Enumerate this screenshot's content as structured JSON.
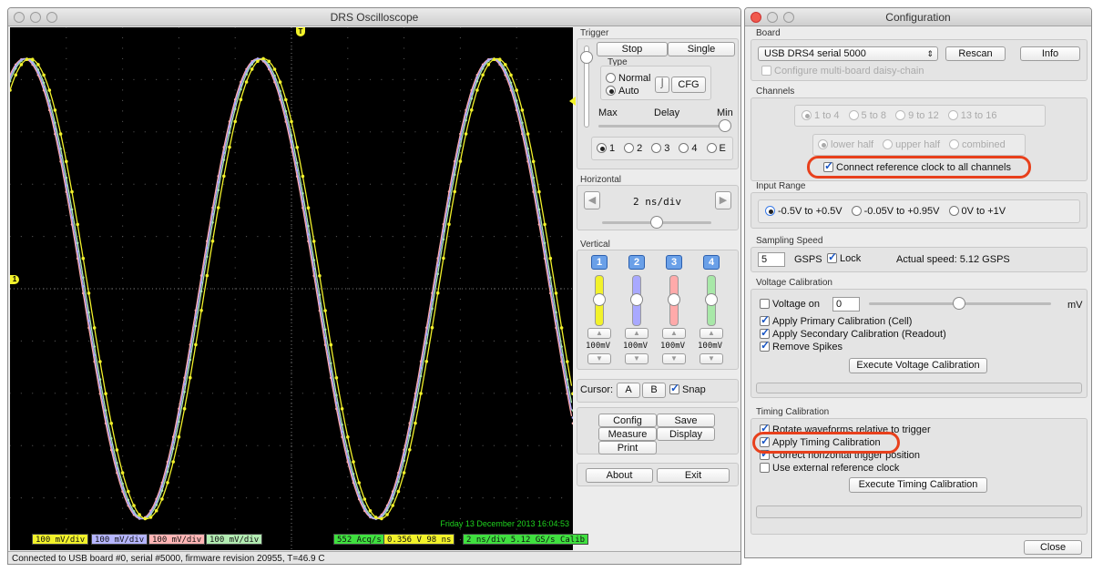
{
  "osc": {
    "title": "DRS Oscilloscope",
    "status_bar": "Connected to USB board #0, serial #5000, firmware revision 20955, T=46.9 C",
    "date_stamp": "Friday 13 December 2013 16:04:53",
    "trigger_marker": "T",
    "ch_marker": "1",
    "badges": {
      "ch1": "100 mV/div",
      "ch2": "100 mV/div",
      "ch3": "100 mV/div",
      "ch4": "100 mV/div",
      "acq": "552 Acq/s",
      "trig": "0.356 V 98 ns",
      "time": "2 ns/div  5.12 GS/s Calib"
    },
    "trigger": {
      "caption": "Trigger",
      "stop": "Stop",
      "single": "Single",
      "type": "Type",
      "normal": "Normal",
      "auto": "Auto",
      "cfg": "CFG",
      "max": "Max",
      "delay": "Delay",
      "min": "Min",
      "sources": [
        "1",
        "2",
        "3",
        "4",
        "E"
      ]
    },
    "horizontal": {
      "caption": "Horizontal",
      "value": "2 ns/div"
    },
    "vertical": {
      "caption": "Vertical",
      "channels": [
        {
          "n": "1",
          "scale": "100mV",
          "color": "#f2f22a"
        },
        {
          "n": "2",
          "scale": "100mV",
          "color": "#a9a9ff"
        },
        {
          "n": "3",
          "scale": "100mV",
          "color": "#ffaaaa"
        },
        {
          "n": "4",
          "scale": "100mV",
          "color": "#a8e8a8"
        }
      ]
    },
    "cursor": {
      "label": "Cursor:",
      "a": "A",
      "b": "B",
      "snap": "Snap"
    },
    "buttons": {
      "config": "Config",
      "save": "Save",
      "measure": "Measure",
      "display": "Display",
      "print": "Print",
      "about": "About",
      "exit": "Exit"
    }
  },
  "conf": {
    "title": "Configuration",
    "board": {
      "caption": "Board",
      "select": "USB DRS4 serial 5000",
      "rescan": "Rescan",
      "info": "Info",
      "daisy": "Configure multi-board daisy-chain"
    },
    "channels": {
      "caption": "Channels",
      "ranges": [
        "1 to 4",
        "5 to 8",
        "9 to 12",
        "13 to 16"
      ],
      "halves": [
        "lower half",
        "upper half",
        "combined"
      ],
      "refclk": "Connect reference clock to all channels"
    },
    "input": {
      "caption": "Input Range",
      "opts": [
        "-0.5V to +0.5V",
        "-0.05V to +0.95V",
        "0V to +1V"
      ]
    },
    "sampling": {
      "caption": "Sampling Speed",
      "value": "5",
      "unit": "GSPS",
      "lock": "Lock",
      "actual": "Actual speed:  5.12 GSPS"
    },
    "voltage": {
      "caption": "Voltage Calibration",
      "voltage_on": "Voltage on",
      "value": "0",
      "unit": "mV",
      "primary": "Apply Primary Calibration (Cell)",
      "secondary": "Apply Secondary Calibration (Readout)",
      "spikes": "Remove Spikes",
      "execute": "Execute Voltage Calibration"
    },
    "timing": {
      "caption": "Timing Calibration",
      "rotate": "Rotate waveforms relative to trigger",
      "apply": "Apply Timing Calibration",
      "correct": "Correct horizontal trigger position",
      "external": "Use external reference clock",
      "execute": "Execute Timing Calibration"
    },
    "close": "Close"
  },
  "chart_data": {
    "type": "line",
    "title": "",
    "xlabel": "",
    "ylabel": "",
    "grid": true,
    "x_divisions": 10,
    "y_divisions": 10,
    "xlim_ns": [
      0,
      20
    ],
    "ylim_mV": [
      -500,
      500
    ],
    "series": [
      {
        "channel": "1",
        "color": "#f2f22a",
        "amplitude_mV": 440,
        "period_ns": 8.3,
        "phase_offset_ns": 0.16
      },
      {
        "channel": "2",
        "color": "#a9a9ff",
        "amplitude_mV": 440,
        "period_ns": 8.3,
        "phase_offset_ns": 0
      },
      {
        "channel": "3",
        "color": "#ffaaaa",
        "amplitude_mV": 440,
        "period_ns": 8.3,
        "phase_offset_ns": -0.04
      },
      {
        "channel": "4",
        "color": "#a8e8a8",
        "amplitude_mV": 440,
        "period_ns": 8.3,
        "phase_offset_ns": 0.05
      }
    ]
  }
}
